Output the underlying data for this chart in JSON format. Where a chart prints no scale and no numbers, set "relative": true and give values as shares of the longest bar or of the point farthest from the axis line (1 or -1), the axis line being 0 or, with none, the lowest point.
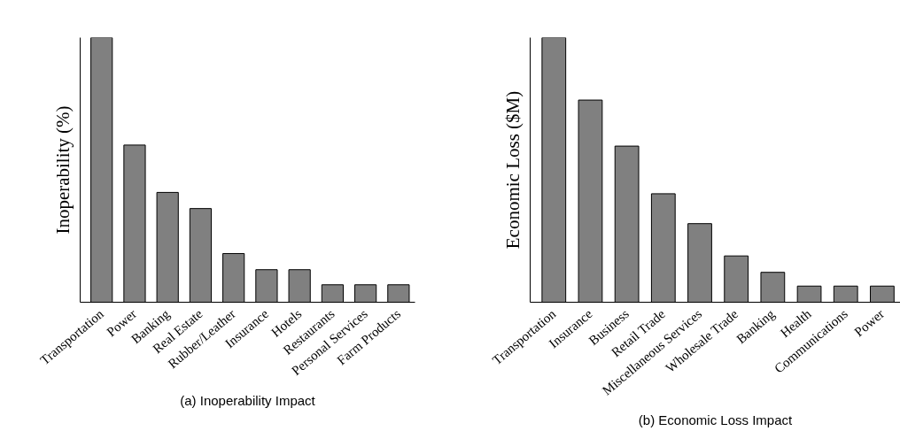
{
  "chart_data": [
    {
      "type": "bar",
      "title": "(a) Inoperability Impact",
      "ylabel": "Inoperability (%)",
      "relative": true,
      "grid": false,
      "color": "#808080",
      "categories": [
        "Transportation",
        "Power",
        "Banking",
        "Real Estate",
        "Rubber/Leather",
        "Insurance",
        "Hotels",
        "Restaurants",
        "Personal Services",
        "Farm Products"
      ],
      "values": [
        1.0,
        0.594,
        0.415,
        0.354,
        0.184,
        0.123,
        0.123,
        0.066,
        0.066,
        0.066
      ]
    },
    {
      "type": "bar",
      "title": "(b) Economic Loss Impact",
      "ylabel": "Economic Loss ($M)",
      "relative": true,
      "grid": false,
      "color": "#808080",
      "categories": [
        "Transportation",
        "Insurance",
        "Business",
        "Retail Trade",
        "Miscellaneous Services",
        "Wholesale Trade",
        "Banking",
        "Health",
        "Communications",
        "Power"
      ],
      "values": [
        1.0,
        0.764,
        0.59,
        0.41,
        0.297,
        0.175,
        0.113,
        0.061,
        0.061,
        0.061
      ]
    }
  ]
}
